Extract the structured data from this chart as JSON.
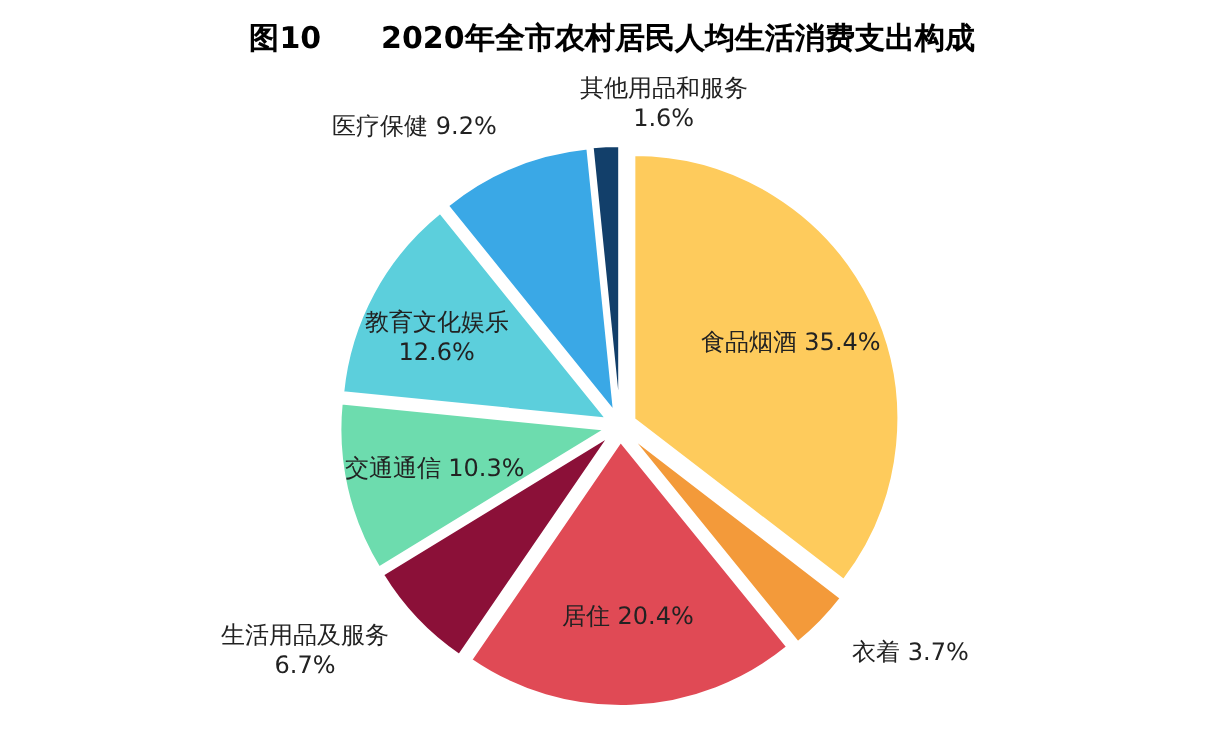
{
  "chart_data": {
    "type": "pie",
    "title": "图10　　2020年全市农村居民人均生活消费支出构成",
    "categories": [
      "食品烟酒",
      "衣着",
      "居住",
      "生活用品及服务",
      "交通通信",
      "教育文化娱乐",
      "医疗保健",
      "其他用品和服务"
    ],
    "values": [
      35.4,
      3.7,
      20.4,
      6.7,
      10.3,
      12.6,
      9.2,
      1.6
    ],
    "colors": [
      "#fecb5c",
      "#f39a3a",
      "#e04a55",
      "#8b1038",
      "#6ddcae",
      "#5ccfdc",
      "#3aa8e6",
      "#123f6a"
    ],
    "value_labels": [
      "35.4%",
      "3.7%",
      "20.4%",
      "6.7%",
      "10.3%",
      "12.6%",
      "9.2%",
      "1.6%"
    ],
    "legend": false
  }
}
